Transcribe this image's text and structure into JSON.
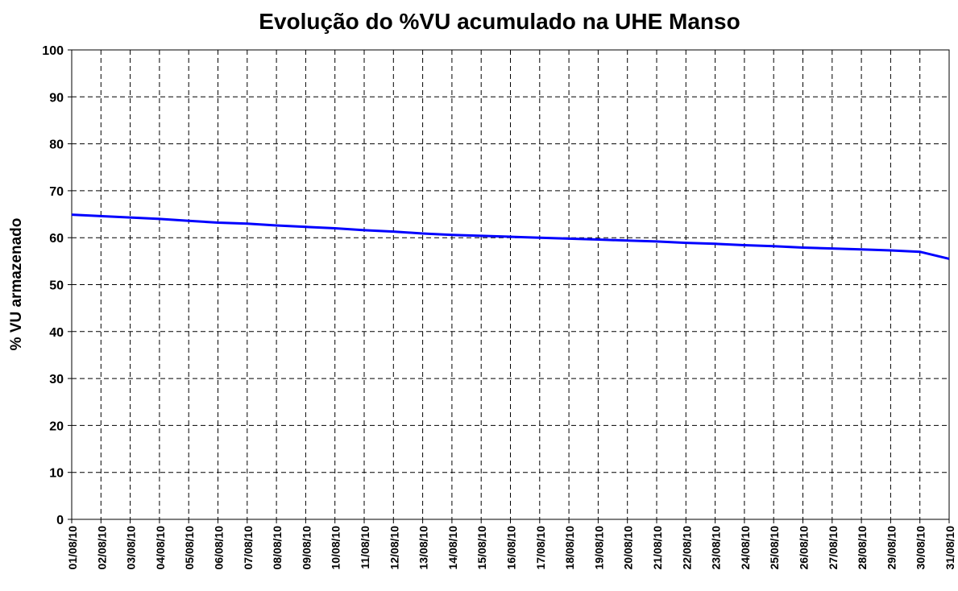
{
  "chart_data": {
    "type": "line",
    "title": "Evolução do %VU acumulado na UHE Manso",
    "y_label": "% VU armazenado",
    "categories": [
      "01/08/10",
      "02/08/10",
      "03/08/10",
      "04/08/10",
      "05/08/10",
      "06/08/10",
      "07/08/10",
      "08/08/10",
      "09/08/10",
      "10/08/10",
      "11/08/10",
      "12/08/10",
      "13/08/10",
      "14/08/10",
      "15/08/10",
      "16/08/10",
      "17/08/10",
      "18/08/10",
      "19/08/10",
      "20/08/10",
      "21/08/10",
      "22/08/10",
      "23/08/10",
      "24/08/10",
      "25/08/10",
      "26/08/10",
      "27/08/10",
      "28/08/10",
      "29/08/10",
      "30/08/10",
      "31/08/10"
    ],
    "values": [
      64.9,
      64.6,
      64.3,
      64.0,
      63.6,
      63.2,
      63.0,
      62.6,
      62.3,
      62.0,
      61.6,
      61.3,
      60.9,
      60.6,
      60.4,
      60.2,
      60.0,
      59.8,
      59.6,
      59.4,
      59.2,
      58.9,
      58.7,
      58.4,
      58.2,
      57.9,
      57.7,
      57.5,
      57.3,
      57.0,
      55.5
    ],
    "color": "#0000ff",
    "ylim": [
      0,
      100
    ],
    "yticks": [
      0,
      10,
      20,
      30,
      40,
      50,
      60,
      70,
      80,
      90,
      100
    ],
    "grid": true
  }
}
